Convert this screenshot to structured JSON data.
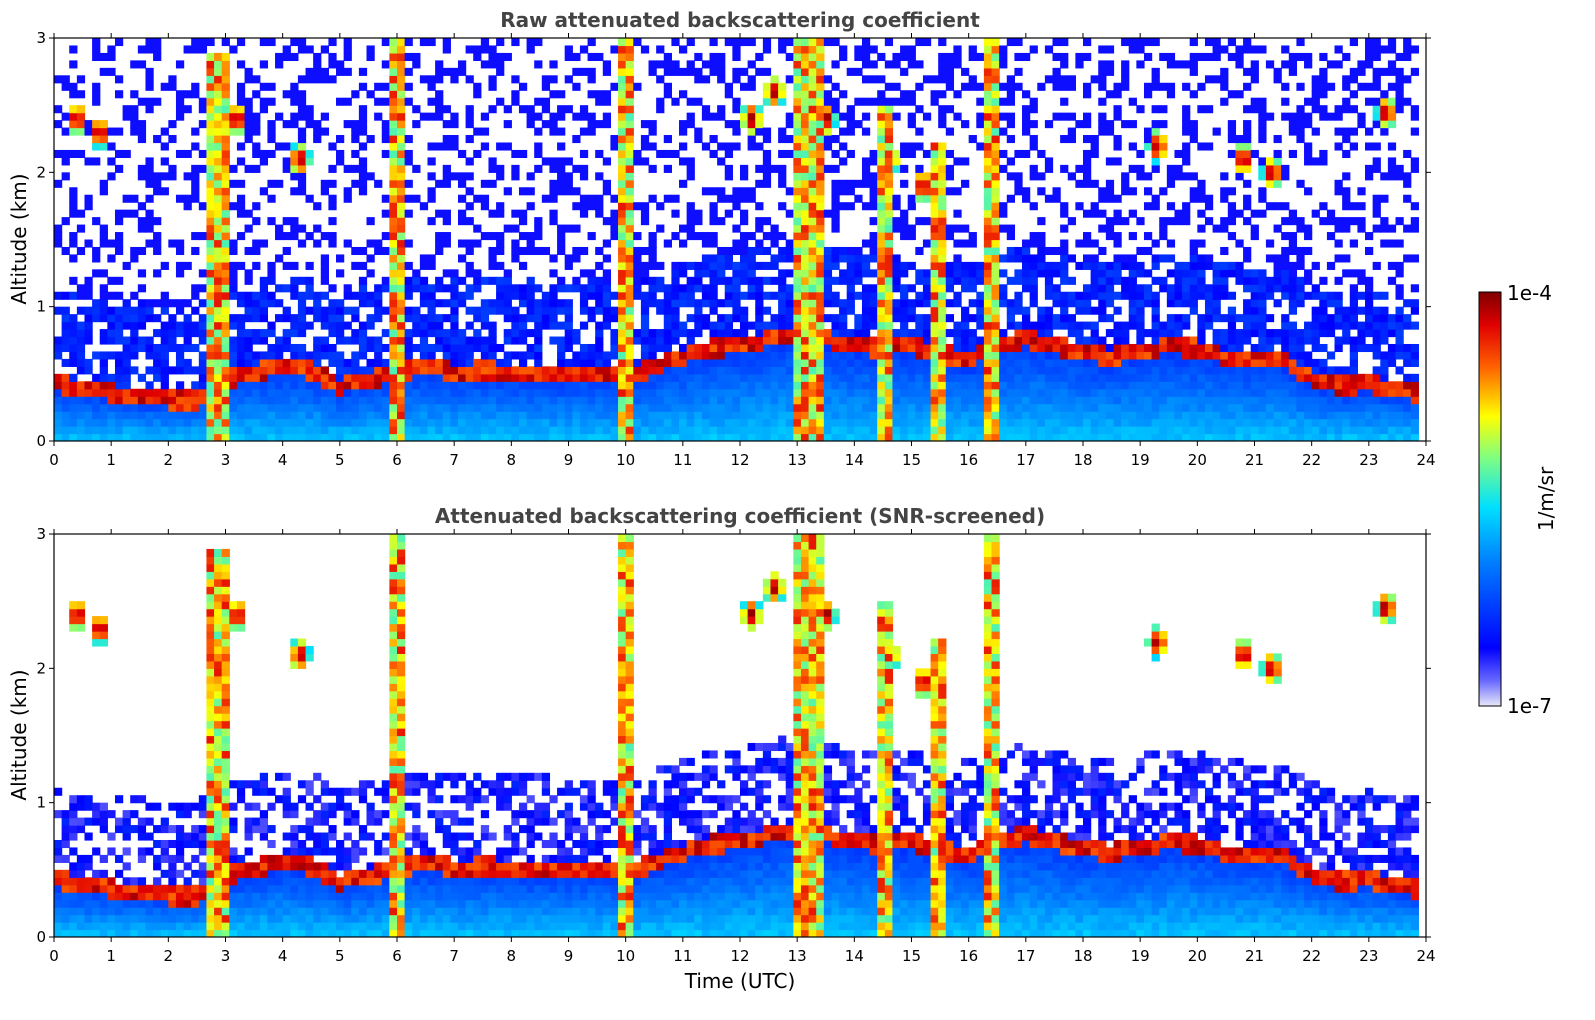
{
  "chart_data": [
    {
      "type": "heatmap",
      "title": "Raw attenuated backscattering coefficient",
      "xlabel": "",
      "ylabel": "Altitude (km)",
      "xlim": [
        0,
        24
      ],
      "ylim": [
        0,
        3
      ],
      "x_ticks": [
        "0",
        "1",
        "2",
        "3",
        "4",
        "5",
        "6",
        "7",
        "8",
        "9",
        "10",
        "11",
        "12",
        "13",
        "14",
        "15",
        "16",
        "17",
        "18",
        "19",
        "20",
        "21",
        "22",
        "23",
        "24"
      ],
      "y_ticks": [
        "0",
        "1",
        "2",
        "3"
      ],
      "screened": false
    },
    {
      "type": "heatmap",
      "title": "Attenuated backscattering coefficient (SNR-screened)",
      "xlabel": "Time (UTC)",
      "ylabel": "Altitude (km)",
      "xlim": [
        0,
        24
      ],
      "ylim": [
        0,
        3
      ],
      "x_ticks": [
        "0",
        "1",
        "2",
        "3",
        "4",
        "5",
        "6",
        "7",
        "8",
        "9",
        "10",
        "11",
        "12",
        "13",
        "14",
        "15",
        "16",
        "17",
        "18",
        "19",
        "20",
        "21",
        "22",
        "23",
        "24"
      ],
      "y_ticks": [
        "0",
        "1",
        "2",
        "3"
      ],
      "screened": true
    }
  ],
  "colorbar": {
    "label": "1/m/sr",
    "max_label": "1e-4",
    "min_label": "1e-7",
    "colormap": "jet",
    "scale": "log",
    "colors": [
      "#e8e8f8",
      "#0000ff",
      "#00c8ff",
      "#a0ff60",
      "#ffe000",
      "#ff4000",
      "#8b0000"
    ]
  },
  "features": {
    "boundary_layer_top_km": [
      [
        0,
        0.42
      ],
      [
        0.5,
        0.38
      ],
      [
        1,
        0.35
      ],
      [
        1.5,
        0.33
      ],
      [
        2,
        0.3
      ],
      [
        2.5,
        0.3
      ],
      [
        3,
        0.45
      ],
      [
        3.5,
        0.5
      ],
      [
        4,
        0.55
      ],
      [
        4.5,
        0.52
      ],
      [
        5,
        0.4
      ],
      [
        5.5,
        0.45
      ],
      [
        6,
        0.5
      ],
      [
        6.5,
        0.55
      ],
      [
        7,
        0.5
      ],
      [
        7.5,
        0.52
      ],
      [
        8,
        0.5
      ],
      [
        8.5,
        0.5
      ],
      [
        9,
        0.48
      ],
      [
        9.5,
        0.5
      ],
      [
        10,
        0.45
      ],
      [
        10.5,
        0.55
      ],
      [
        11,
        0.62
      ],
      [
        11.5,
        0.68
      ],
      [
        12,
        0.7
      ],
      [
        12.5,
        0.75
      ],
      [
        13,
        0.8
      ],
      [
        13.5,
        0.75
      ],
      [
        14,
        0.7
      ],
      [
        14.5,
        0.68
      ],
      [
        15,
        0.7
      ],
      [
        15.5,
        0.65
      ],
      [
        16,
        0.6
      ],
      [
        16.5,
        0.7
      ],
      [
        17,
        0.75
      ],
      [
        17.5,
        0.7
      ],
      [
        18,
        0.65
      ],
      [
        18.5,
        0.62
      ],
      [
        19,
        0.65
      ],
      [
        19.5,
        0.7
      ],
      [
        20,
        0.68
      ],
      [
        20.5,
        0.62
      ],
      [
        21,
        0.6
      ],
      [
        21.5,
        0.6
      ],
      [
        22,
        0.45
      ],
      [
        22.5,
        0.4
      ],
      [
        23,
        0.42
      ],
      [
        23.5,
        0.38
      ],
      [
        23.8,
        0.35
      ]
    ],
    "precipitation_columns_utc": [
      {
        "start": 2.7,
        "end": 3.05,
        "top_km": 2.9
      },
      {
        "start": 5.85,
        "end": 6.2,
        "top_km": 3.0
      },
      {
        "start": 9.9,
        "end": 10.1,
        "top_km": 3.0
      },
      {
        "start": 13.0,
        "end": 13.4,
        "top_km": 3.0
      },
      {
        "start": 14.4,
        "end": 14.6,
        "top_km": 2.5
      },
      {
        "start": 15.4,
        "end": 15.55,
        "top_km": 2.2
      },
      {
        "start": 16.3,
        "end": 16.55,
        "top_km": 3.0
      }
    ],
    "elevated_clouds": [
      {
        "x": 0.4,
        "y": 2.4
      },
      {
        "x": 0.8,
        "y": 2.3
      },
      {
        "x": 3.2,
        "y": 2.4
      },
      {
        "x": 4.3,
        "y": 2.1
      },
      {
        "x": 12.2,
        "y": 2.4
      },
      {
        "x": 12.6,
        "y": 2.6
      },
      {
        "x": 13.5,
        "y": 2.4
      },
      {
        "x": 14.6,
        "y": 2.1
      },
      {
        "x": 15.2,
        "y": 1.9
      },
      {
        "x": 19.3,
        "y": 2.2
      },
      {
        "x": 20.8,
        "y": 2.1
      },
      {
        "x": 21.3,
        "y": 2.0
      },
      {
        "x": 23.3,
        "y": 2.45
      }
    ]
  }
}
